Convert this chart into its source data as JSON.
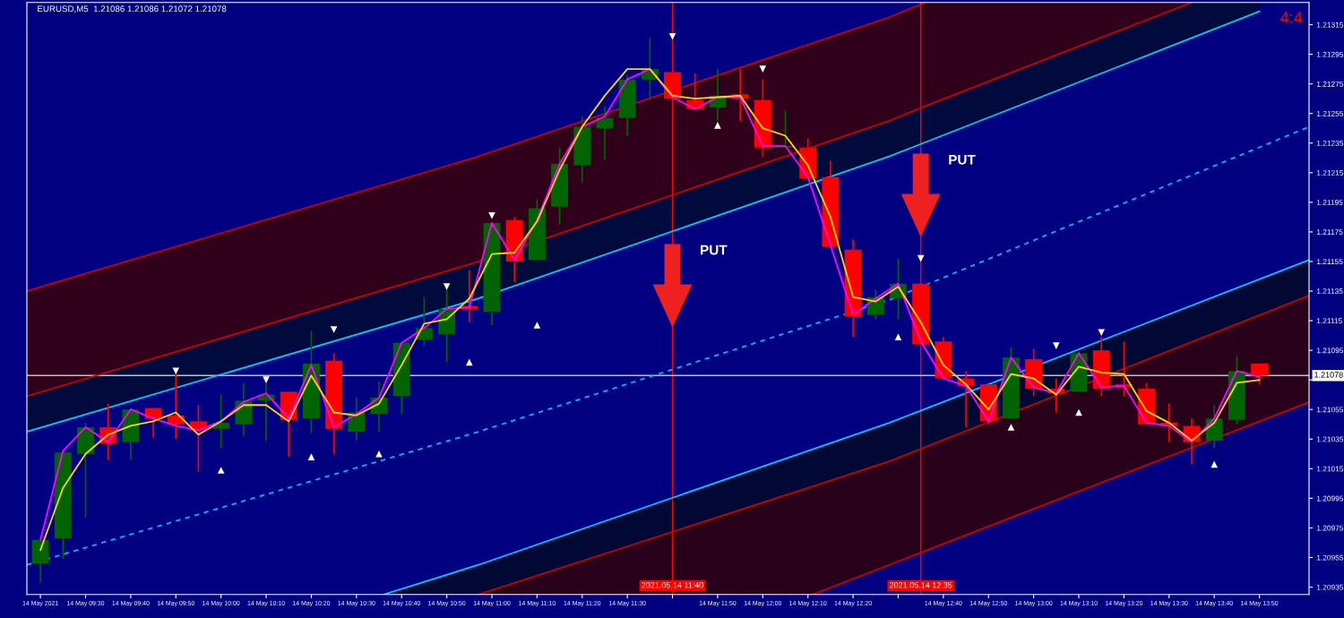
{
  "chart_data": {
    "type": "candlestick",
    "title": "EURUSD,M5  1.21086 1.21086 1.21072 1.21078",
    "x": [
      "2021-05-14T09:20",
      "2021-05-14T09:25",
      "2021-05-14T09:30",
      "2021-05-14T09:35",
      "2021-05-14T09:40",
      "2021-05-14T09:45",
      "2021-05-14T09:50",
      "2021-05-14T09:55",
      "2021-05-14T10:00",
      "2021-05-14T10:05",
      "2021-05-14T10:10",
      "2021-05-14T10:15",
      "2021-05-14T10:20",
      "2021-05-14T10:25",
      "2021-05-14T10:30",
      "2021-05-14T10:35",
      "2021-05-14T10:40",
      "2021-05-14T10:45",
      "2021-05-14T10:50",
      "2021-05-14T10:55",
      "2021-05-14T11:00",
      "2021-05-14T11:05",
      "2021-05-14T11:10",
      "2021-05-14T11:15",
      "2021-05-14T11:20",
      "2021-05-14T11:25",
      "2021-05-14T11:30",
      "2021-05-14T11:35",
      "2021-05-14T11:40",
      "2021-05-14T11:45",
      "2021-05-14T11:50",
      "2021-05-14T11:55",
      "2021-05-14T12:00",
      "2021-05-14T12:05",
      "2021-05-14T12:10",
      "2021-05-14T12:15",
      "2021-05-14T12:20",
      "2021-05-14T12:25",
      "2021-05-14T12:30",
      "2021-05-14T12:35",
      "2021-05-14T12:40",
      "2021-05-14T12:45",
      "2021-05-14T12:50",
      "2021-05-14T12:55",
      "2021-05-14T13:00",
      "2021-05-14T13:05",
      "2021-05-14T13:10",
      "2021-05-14T13:15",
      "2021-05-14T13:20",
      "2021-05-14T13:25",
      "2021-05-14T13:30",
      "2021-05-14T13:35",
      "2021-05-14T13:40",
      "2021-05-14T13:45",
      "2021-05-14T13:50"
    ],
    "ohlc": [
      [
        1.20951,
        1.20967,
        1.20938,
        1.20967
      ],
      [
        1.20968,
        1.21028,
        1.20954,
        1.21026
      ],
      [
        1.21025,
        1.21046,
        1.20982,
        1.21043
      ],
      [
        1.21043,
        1.21059,
        1.21021,
        1.21032
      ],
      [
        1.21033,
        1.21056,
        1.21021,
        1.21055
      ],
      [
        1.21056,
        1.21056,
        1.21036,
        1.21049
      ],
      [
        1.21051,
        1.21079,
        1.21035,
        1.21045
      ],
      [
        1.21047,
        1.21058,
        1.21013,
        1.21041
      ],
      [
        1.21042,
        1.21065,
        1.21029,
        1.21046
      ],
      [
        1.21045,
        1.21073,
        1.21037,
        1.21061
      ],
      [
        1.21061,
        1.21074,
        1.21034,
        1.21065
      ],
      [
        1.21067,
        1.21067,
        1.21023,
        1.21048
      ],
      [
        1.21049,
        1.21108,
        1.21039,
        1.21086
      ],
      [
        1.21088,
        1.21093,
        1.21025,
        1.21042
      ],
      [
        1.2104,
        1.21063,
        1.21034,
        1.21053
      ],
      [
        1.21052,
        1.21074,
        1.2104,
        1.21063
      ],
      [
        1.21064,
        1.211,
        1.21052,
        1.211
      ],
      [
        1.21102,
        1.21131,
        1.21098,
        1.2111
      ],
      [
        1.21106,
        1.21137,
        1.21087,
        1.21123
      ],
      [
        1.21125,
        1.21149,
        1.21114,
        1.21123
      ],
      [
        1.21121,
        1.21181,
        1.21112,
        1.21181
      ],
      [
        1.21183,
        1.21185,
        1.21141,
        1.21155
      ],
      [
        1.21156,
        1.21197,
        1.21156,
        1.21191
      ],
      [
        1.21192,
        1.21232,
        1.2118,
        1.21221
      ],
      [
        1.2122,
        1.21253,
        1.21208,
        1.21246
      ],
      [
        1.21245,
        1.2126,
        1.21224,
        1.21252
      ],
      [
        1.21252,
        1.21281,
        1.2124,
        1.21278
      ],
      [
        1.21278,
        1.21306,
        1.21264,
        1.21285
      ],
      [
        1.21283,
        1.21283,
        1.21265,
        1.21265
      ],
      [
        1.21264,
        1.21282,
        1.21258,
        1.21258
      ],
      [
        1.21259,
        1.21285,
        1.2125,
        1.21267
      ],
      [
        1.21268,
        1.21285,
        1.2125,
        1.21265
      ],
      [
        1.21264,
        1.21278,
        1.21226,
        1.21232
      ],
      [
        1.21232,
        1.21257,
        1.21232,
        1.21233
      ],
      [
        1.21232,
        1.21238,
        1.21211,
        1.21211
      ],
      [
        1.21212,
        1.21223,
        1.21165,
        1.21165
      ],
      [
        1.21163,
        1.2117,
        1.21104,
        1.21118
      ],
      [
        1.21119,
        1.21136,
        1.21116,
        1.21131
      ],
      [
        1.2113,
        1.21157,
        1.21116,
        1.2114
      ],
      [
        1.2114,
        1.2114,
        1.21099,
        1.21099
      ],
      [
        1.21101,
        1.21104,
        1.21076,
        1.21076
      ],
      [
        1.21076,
        1.21081,
        1.21043,
        1.21071
      ],
      [
        1.21072,
        1.21072,
        1.21045,
        1.21047
      ],
      [
        1.21049,
        1.21097,
        1.21049,
        1.2109
      ],
      [
        1.21089,
        1.21096,
        1.21064,
        1.21069
      ],
      [
        1.21069,
        1.21076,
        1.21053,
        1.21066
      ],
      [
        1.21067,
        1.21094,
        1.21067,
        1.21093
      ],
      [
        1.21095,
        1.21104,
        1.21064,
        1.21069
      ],
      [
        1.21072,
        1.21101,
        1.21064,
        1.2107
      ],
      [
        1.21069,
        1.21073,
        1.21045,
        1.21045
      ],
      [
        1.21046,
        1.21059,
        1.21033,
        1.21044
      ],
      [
        1.21044,
        1.21049,
        1.21018,
        1.21033
      ],
      [
        1.21034,
        1.21058,
        1.21029,
        1.21049
      ],
      [
        1.21048,
        1.21091,
        1.21045,
        1.21081
      ],
      [
        1.21086,
        1.21086,
        1.21072,
        1.21078
      ]
    ],
    "colors": [
      "#006400",
      "#006400",
      "#006400",
      "#ff0000",
      "#006400",
      "#ff0000",
      "#ff0000",
      "#ff0000",
      "#006400",
      "#006400",
      "#006400",
      "#ff0000",
      "#006400",
      "#ff0000",
      "#006400",
      "#006400",
      "#006400",
      "#006400",
      "#006400",
      "#ff0000",
      "#006400",
      "#ff0000",
      "#006400",
      "#006400",
      "#006400",
      "#006400",
      "#006400",
      "#006400",
      "#ff0000",
      "#ff0000",
      "#006400",
      "#ff0000",
      "#ff0000",
      "#006400",
      "#ff0000",
      "#ff0000",
      "#ff0000",
      "#006400",
      "#006400",
      "#ff0000",
      "#ff0000",
      "#ff0000",
      "#ff0000",
      "#006400",
      "#ff0000",
      "#ff0000",
      "#006400",
      "#ff0000",
      "#ff0000",
      "#ff0000",
      "#ff0000",
      "#ff0000",
      "#006400",
      "#006400",
      "#ff0000"
    ],
    "series": [
      {
        "type": "line",
        "color": "#c80000",
        "x": [
          "2021-05-14T09:17",
          "2021-05-14T10:56",
          "2021-05-14T12:28",
          "2021-05-14T12:36"
        ],
        "values": [
          1.21135,
          1.21225,
          1.2132,
          1.2133
        ]
      },
      {
        "type": "line",
        "color": "#c80000",
        "x": [
          "2021-05-14T09:17",
          "2021-05-14T10:56",
          "2021-05-14T12:28",
          "2021-05-14T12:36",
          "2021-05-14T13:35"
        ],
        "values": [
          1.21064,
          1.21154,
          1.2125,
          1.2126,
          1.2133
        ],
        "lower": [
          1.21064,
          1.21154,
          1.2125,
          1.2126,
          1.2133
        ],
        "upper": [
          1.21135,
          1.21225,
          1.2132,
          1.2133,
          1.2133
        ]
      },
      {
        "type": "line",
        "color": "#00c8ff",
        "x": [
          "2021-05-14T09:17",
          "2021-05-14T10:56",
          "2021-05-14T12:28",
          "2021-05-14T13:35",
          "2021-05-14T13:50"
        ],
        "values": [
          1.2104,
          1.21129,
          1.21226,
          1.21306,
          1.21324
        ],
        "lower": [
          1.2104,
          1.21129,
          1.21226,
          1.21306,
          1.21324
        ],
        "upper": [
          1.21064,
          1.21154,
          1.2125,
          1.2133,
          1.2133
        ]
      },
      {
        "type": "line",
        "color": "#00b4ff",
        "line_style": "dashed",
        "x": [
          "2021-05-14T09:17",
          "2021-05-14T10:56",
          "2021-05-14T12:28",
          "2021-05-14T14:01"
        ],
        "values": [
          1.2095,
          1.21039,
          1.21129,
          1.21246
        ]
      },
      {
        "type": "line",
        "color": "#00c8ff",
        "x": [
          "2021-05-14T10:36",
          "2021-05-14T10:57",
          "2021-05-14T12:28",
          "2021-05-14T14:01"
        ],
        "values": [
          1.2093,
          1.2095,
          1.21046,
          1.21156
        ],
        "lower": [
          1.2093,
          1.2093,
          1.2102,
          1.21132
        ],
        "upper": [
          1.2093,
          1.2095,
          1.21046,
          1.21156
        ]
      },
      {
        "type": "line",
        "color": "#c80000",
        "x": [
          "2021-05-14T10:57",
          "2021-05-14T12:11",
          "2021-05-14T12:28",
          "2021-05-14T14:01"
        ],
        "values": [
          1.2093,
          1.21003,
          1.2102,
          1.21132
        ],
        "lower": [
          1.2093,
          1.2093,
          1.2095,
          1.2106
        ],
        "upper": [
          1.2093,
          1.21003,
          1.2102,
          1.21132
        ]
      },
      {
        "type": "line",
        "color": "#c80000",
        "x": [
          "2021-05-14T12:11",
          "2021-05-14T12:28",
          "2021-05-14T14:01"
        ],
        "values": [
          1.2093,
          1.2095,
          1.2106
        ]
      },
      {
        "type": "line",
        "color": "#ff00ff",
        "values": [
          1.20967,
          1.21027,
          1.21043,
          1.21033,
          1.21055,
          1.21049,
          1.21044,
          1.21041,
          1.21047,
          1.2106,
          1.21066,
          1.21049,
          1.21085,
          1.21043,
          1.21052,
          1.21063,
          1.211,
          1.2111,
          1.21123,
          1.21124,
          1.21181,
          1.21156,
          1.21183,
          1.21221,
          1.21246,
          1.21253,
          1.21278,
          1.21285,
          1.21266,
          1.21258,
          1.21266,
          1.21266,
          1.21233,
          1.21233,
          1.21212,
          1.21166,
          1.21119,
          1.2113,
          1.2114,
          1.21101,
          1.21076,
          1.21071,
          1.21047,
          1.2109,
          1.2107,
          1.21066,
          1.21093,
          1.2107,
          1.21071,
          1.21046,
          1.21044,
          1.21033,
          1.21049,
          1.21081,
          1.21077
        ]
      },
      {
        "type": "line",
        "color": "#ffd700",
        "values": [
          1.2096,
          1.21002,
          1.21025,
          1.21038,
          1.21044,
          1.21047,
          1.21053,
          1.21038,
          1.21047,
          1.21058,
          1.21058,
          1.21047,
          1.21078,
          1.21053,
          1.21051,
          1.21059,
          1.21085,
          1.21113,
          1.21116,
          1.2113,
          1.2116,
          1.21161,
          1.21182,
          1.21217,
          1.21246,
          1.21267,
          1.21285,
          1.21285,
          1.21267,
          1.21265,
          1.21266,
          1.21267,
          1.21245,
          1.2124,
          1.2122,
          1.21185,
          1.21131,
          1.21128,
          1.21138,
          1.21114,
          1.21085,
          1.21072,
          1.21055,
          1.21079,
          1.21076,
          1.21065,
          1.21084,
          1.2108,
          1.21079,
          1.21054,
          1.21046,
          1.21034,
          1.21046,
          1.21073,
          1.21075
        ]
      },
      {
        "type": "scatter",
        "color": "#ffffff",
        "marker": "triangle",
        "x": [
          "2021-05-14T09:50",
          "2021-05-14T10:10",
          "2021-05-14T10:25",
          "2021-05-14T10:50",
          "2021-05-14T11:00",
          "2021-05-14T11:40",
          "2021-05-14T12:00",
          "2021-05-14T12:35",
          "2021-05-14T13:05",
          "2021-05-14T13:15"
        ],
        "values": [
          1.21081,
          1.21075,
          1.21109,
          1.21138,
          1.21186,
          1.21307,
          1.21285,
          1.21157,
          1.21098,
          1.21107
        ]
      },
      {
        "type": "scatter",
        "color": "#ffffff",
        "marker": "triangle",
        "x": [
          "2021-05-14T10:00",
          "2021-05-14T10:20",
          "2021-05-14T10:35",
          "2021-05-14T10:55",
          "2021-05-14T11:10",
          "2021-05-14T11:50",
          "2021-05-14T12:30",
          "2021-05-14T12:55",
          "2021-05-14T13:10",
          "2021-05-14T13:40"
        ],
        "values": [
          1.21014,
          1.21023,
          1.21025,
          1.21087,
          1.21112,
          1.21247,
          1.21104,
          1.21043,
          1.21053,
          1.21018
        ]
      }
    ],
    "ref_lines": [
      {
        "axis": "x",
        "value": "2021-05-14T11:40",
        "label": "2021.05.14 11:40",
        "color": "#ff0000"
      },
      {
        "axis": "x",
        "value": "2021-05-14T12:35",
        "label": "2021.05.14 12:35",
        "color": "#ff0000"
      },
      {
        "axis": "y",
        "value": 1.21078,
        "label": "1.21078",
        "color": "#c0c0c0"
      }
    ],
    "annotations": [
      {
        "text": "PUT",
        "x": "2021-05-14T11:40",
        "y": 1.21162
      },
      {
        "text": "PUT",
        "x": "2021-05-14T12:35",
        "y": 1.21223
      },
      "4:4"
    ],
    "xlim": [
      "2021-05-14T09:17",
      "2021-05-14T14:01"
    ],
    "ylim": [
      1.2093,
      1.2133
    ],
    "xticks": [
      {
        "value": "2021-05-14T09:20",
        "label": "14 May 2021"
      },
      {
        "value": "2021-05-14T09:30",
        "label": "14 May 09:30"
      },
      {
        "value": "2021-05-14T09:40",
        "label": "14 May 09:40"
      },
      {
        "value": "2021-05-14T09:50",
        "label": "14 May 09:50"
      },
      {
        "value": "2021-05-14T10:00",
        "label": "14 May 10:00"
      },
      {
        "value": "2021-05-14T10:10",
        "label": "14 May 10:10"
      },
      {
        "value": "2021-05-14T10:20",
        "label": "14 May 10:20"
      },
      {
        "value": "2021-05-14T10:30",
        "label": "14 May 10:30"
      },
      {
        "value": "2021-05-14T10:40",
        "label": "14 May 10:40"
      },
      {
        "value": "2021-05-14T10:50",
        "label": "14 May 10:50"
      },
      {
        "value": "2021-05-14T11:00",
        "label": "14 May 11:00"
      },
      {
        "value": "2021-05-14T11:10",
        "label": "14 May 11:10"
      },
      {
        "value": "2021-05-14T11:20",
        "label": "14 May 11:20"
      },
      {
        "value": "2021-05-14T11:30",
        "label": "14 May 11:30"
      },
      {
        "value": "2021-05-14T11:40",
        "label": null
      },
      {
        "value": "2021-05-14T11:50",
        "label": "14 May 11:50"
      },
      {
        "value": "2021-05-14T12:00",
        "label": "14 May 12:00"
      },
      {
        "value": "2021-05-14T12:10",
        "label": "14 May 12:10"
      },
      {
        "value": "2021-05-14T12:20",
        "label": "14 May 12:20"
      },
      {
        "value": "2021-05-14T12:30",
        "label": null
      },
      {
        "value": "2021-05-14T12:40",
        "label": "14 May 12:40"
      },
      {
        "value": "2021-05-14T12:50",
        "label": "14 May 12:50"
      },
      {
        "value": "2021-05-14T13:00",
        "label": "14 May 13:00"
      },
      {
        "value": "2021-05-14T13:10",
        "label": "14 May 13:10"
      },
      {
        "value": "2021-05-14T13:20",
        "label": "14 May 13:20"
      },
      {
        "value": "2021-05-14T13:30",
        "label": "14 May 13:30"
      },
      {
        "value": "2021-05-14T13:40",
        "label": "14 May 13:40"
      },
      {
        "value": "2021-05-14T13:50",
        "label": "14 May 13:50"
      }
    ],
    "yticks": [
      1.20935,
      1.20955,
      1.20975,
      1.20995,
      1.21015,
      1.21035,
      1.21055,
      {
        "value": 1.21075,
        "label": null
      },
      1.21095,
      1.21115,
      1.21135,
      1.21155,
      1.21175,
      1.21195,
      1.21215,
      1.21235,
      1.21255,
      1.21275,
      1.21295,
      1.21315
    ],
    "grid": false
  }
}
